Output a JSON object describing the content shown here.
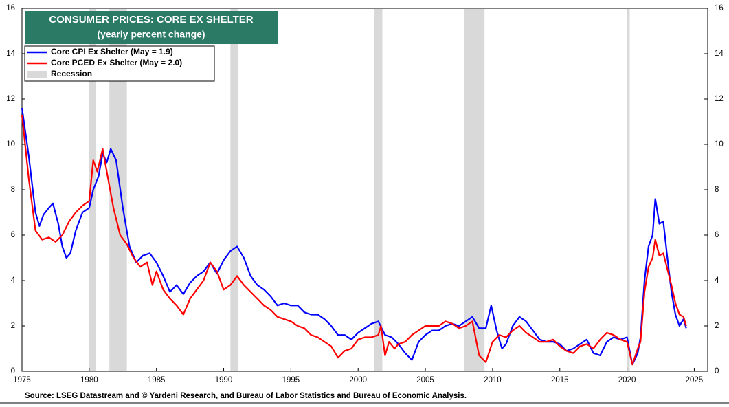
{
  "chart_data": {
    "type": "line",
    "title": "CONSUMER PRICES: CORE EX SHELTER",
    "subtitle": "(yearly percent change)",
    "source": "Source: LSEG Datastream and © Yardeni Research, and Bureau of Labor Statistics and Bureau of Economic Analysis.",
    "xlim": [
      1975,
      2026
    ],
    "xticks": [
      1975,
      1980,
      1985,
      1990,
      1995,
      2000,
      2005,
      2010,
      2015,
      2020,
      2025
    ],
    "ylim": [
      0,
      16
    ],
    "yticks": [
      0,
      2,
      4,
      6,
      8,
      10,
      12,
      14,
      16
    ],
    "y2lim": [
      0,
      16
    ],
    "y2ticks": [
      0,
      2,
      4,
      6,
      8,
      10,
      12,
      14,
      16
    ],
    "legend": "top-left",
    "recession_name": "Recession",
    "recession_color": "#d9d9d9",
    "recessions": [
      [
        1980.0,
        1980.5
      ],
      [
        1981.5,
        1982.8
      ],
      [
        1990.5,
        1991.1
      ],
      [
        2001.2,
        2001.8
      ],
      [
        2007.9,
        2009.4
      ],
      [
        2020.0,
        2020.2
      ]
    ],
    "series": [
      {
        "name": "Core CPI Ex Shelter (May = 1.9)",
        "color": "#0000ff",
        "x": [
          1975.0,
          1975.5,
          1976.0,
          1976.3,
          1976.6,
          1977.0,
          1977.3,
          1977.7,
          1978.0,
          1978.3,
          1978.6,
          1979.0,
          1979.5,
          1980.0,
          1980.3,
          1980.7,
          1981.0,
          1981.3,
          1981.6,
          1982.0,
          1982.5,
          1983.0,
          1983.5,
          1984.0,
          1984.5,
          1985.0,
          1985.5,
          1986.0,
          1986.5,
          1987.0,
          1987.5,
          1988.0,
          1988.5,
          1989.0,
          1989.5,
          1990.0,
          1990.5,
          1991.0,
          1991.5,
          1992.0,
          1992.5,
          1993.0,
          1993.5,
          1994.0,
          1994.5,
          1995.0,
          1995.5,
          1996.0,
          1996.5,
          1997.0,
          1997.5,
          1998.0,
          1998.5,
          1999.0,
          1999.5,
          2000.0,
          2000.5,
          2001.0,
          2001.5,
          2002.0,
          2002.5,
          2003.0,
          2003.5,
          2004.0,
          2004.5,
          2005.0,
          2005.5,
          2006.0,
          2006.5,
          2007.0,
          2007.5,
          2008.0,
          2008.5,
          2009.0,
          2009.5,
          2009.9,
          2010.3,
          2010.7,
          2011.0,
          2011.5,
          2012.0,
          2012.5,
          2013.0,
          2013.5,
          2014.0,
          2014.5,
          2015.0,
          2015.5,
          2016.0,
          2016.5,
          2017.0,
          2017.5,
          2018.0,
          2018.5,
          2019.0,
          2019.5,
          2020.0,
          2020.4,
          2020.8,
          2021.0,
          2021.3,
          2021.6,
          2021.9,
          2022.1,
          2022.4,
          2022.7,
          2023.0,
          2023.3,
          2023.6,
          2023.9,
          2024.2,
          2024.4
        ],
        "values": [
          11.6,
          9.5,
          7.0,
          6.4,
          6.9,
          7.2,
          7.4,
          6.5,
          5.5,
          5.0,
          5.2,
          6.2,
          7.0,
          7.2,
          8.0,
          8.6,
          9.6,
          9.2,
          9.8,
          9.3,
          7.2,
          5.5,
          4.8,
          5.1,
          5.2,
          4.8,
          4.2,
          3.5,
          3.8,
          3.4,
          3.9,
          4.2,
          4.4,
          4.8,
          4.3,
          4.9,
          5.3,
          5.5,
          5.0,
          4.2,
          3.8,
          3.6,
          3.3,
          2.9,
          3.0,
          2.9,
          2.9,
          2.6,
          2.5,
          2.5,
          2.3,
          2.0,
          1.6,
          1.6,
          1.4,
          1.7,
          1.9,
          2.1,
          2.2,
          1.6,
          1.5,
          1.2,
          0.8,
          0.5,
          1.3,
          1.6,
          1.8,
          1.8,
          2.0,
          2.1,
          2.0,
          2.2,
          2.4,
          1.9,
          1.9,
          2.9,
          1.8,
          1.0,
          1.2,
          2.0,
          2.4,
          2.2,
          1.8,
          1.4,
          1.3,
          1.3,
          1.2,
          0.9,
          1.0,
          1.2,
          1.4,
          0.8,
          0.7,
          1.3,
          1.5,
          1.4,
          1.5,
          0.3,
          0.8,
          1.5,
          4.0,
          5.5,
          6.0,
          7.6,
          6.5,
          6.6,
          5.0,
          3.5,
          2.5,
          2.0,
          2.3,
          1.9
        ]
      },
      {
        "name": "Core PCED Ex Shelter (May = 2.0)",
        "color": "#ff0000",
        "x": [
          1975.0,
          1975.5,
          1976.0,
          1976.5,
          1977.0,
          1977.5,
          1978.0,
          1978.5,
          1979.0,
          1979.5,
          1980.0,
          1980.3,
          1980.6,
          1981.0,
          1981.4,
          1981.8,
          1982.3,
          1982.8,
          1983.3,
          1983.8,
          1984.3,
          1984.7,
          1985.0,
          1985.5,
          1986.0,
          1986.5,
          1987.0,
          1987.5,
          1988.0,
          1988.5,
          1989.0,
          1989.5,
          1990.0,
          1990.5,
          1991.0,
          1991.5,
          1992.0,
          1992.5,
          1993.0,
          1993.5,
          1994.0,
          1994.5,
          1995.0,
          1995.5,
          1996.0,
          1996.5,
          1997.0,
          1997.5,
          1998.0,
          1998.5,
          1999.0,
          1999.5,
          2000.0,
          2000.5,
          2001.0,
          2001.5,
          2001.7,
          2002.0,
          2002.3,
          2002.7,
          2003.0,
          2003.5,
          2004.0,
          2004.5,
          2005.0,
          2005.5,
          2006.0,
          2006.5,
          2007.0,
          2007.5,
          2008.0,
          2008.5,
          2009.0,
          2009.5,
          2010.0,
          2010.5,
          2011.0,
          2011.5,
          2012.0,
          2012.5,
          2013.0,
          2013.5,
          2014.0,
          2014.5,
          2015.0,
          2015.5,
          2016.0,
          2016.5,
          2017.0,
          2017.5,
          2018.0,
          2018.5,
          2019.0,
          2019.5,
          2020.0,
          2020.4,
          2020.8,
          2021.0,
          2021.3,
          2021.6,
          2021.9,
          2022.1,
          2022.4,
          2022.7,
          2023.0,
          2023.3,
          2023.6,
          2023.9,
          2024.2,
          2024.4
        ],
        "values": [
          11.3,
          8.5,
          6.2,
          5.8,
          5.9,
          5.7,
          6.0,
          6.6,
          7.0,
          7.3,
          7.5,
          9.3,
          8.8,
          9.8,
          8.5,
          7.2,
          6.0,
          5.6,
          5.0,
          4.6,
          4.8,
          3.8,
          4.4,
          3.6,
          3.2,
          2.9,
          2.5,
          3.2,
          3.6,
          4.0,
          4.8,
          4.4,
          3.6,
          3.8,
          4.2,
          3.8,
          3.5,
          3.2,
          2.9,
          2.7,
          2.4,
          2.3,
          2.2,
          2.0,
          1.9,
          1.6,
          1.5,
          1.3,
          1.1,
          0.6,
          0.9,
          1.0,
          1.4,
          1.5,
          1.5,
          1.6,
          2.0,
          0.7,
          1.3,
          1.0,
          1.2,
          1.3,
          1.6,
          1.8,
          2.0,
          2.0,
          2.0,
          2.2,
          2.1,
          1.9,
          2.0,
          2.2,
          0.7,
          0.4,
          1.3,
          1.6,
          1.5,
          1.8,
          2.0,
          1.7,
          1.5,
          1.3,
          1.3,
          1.4,
          1.1,
          0.9,
          0.8,
          1.1,
          1.2,
          1.0,
          1.4,
          1.7,
          1.6,
          1.4,
          1.3,
          0.3,
          1.0,
          1.3,
          3.5,
          4.6,
          5.0,
          5.8,
          5.1,
          5.2,
          4.5,
          3.8,
          3.0,
          2.5,
          2.4,
          2.0
        ]
      }
    ]
  }
}
